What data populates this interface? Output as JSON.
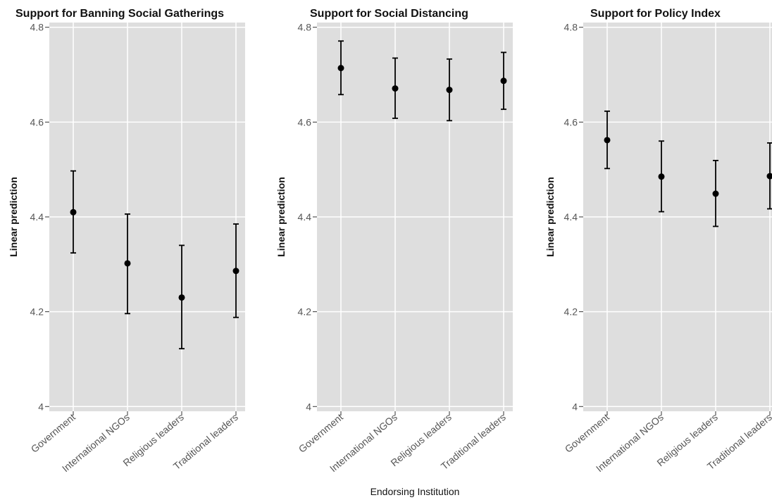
{
  "figure": {
    "xlabel": "Endorsing Institution",
    "colors": {
      "panel_bg": "#dedede",
      "grid": "#ffffff",
      "marker": "#000000",
      "text": "#111111",
      "tick_text": "#555555"
    }
  },
  "chart_data": [
    {
      "type": "scatter",
      "title": "Support for Banning Social Gatherings",
      "ylabel": "Linear prediction",
      "categories": [
        "Government",
        "International NGOs",
        "Religious leaders",
        "Traditional leaders"
      ],
      "values": [
        4.41,
        4.302,
        4.23,
        4.286
      ],
      "ci_low": [
        4.324,
        4.196,
        4.122,
        4.188
      ],
      "ci_high": [
        4.497,
        4.406,
        4.34,
        4.385
      ],
      "yticks": [
        4,
        4.2,
        4.4,
        4.6,
        4.8
      ],
      "ytick_labels": [
        "4",
        "4.2",
        "4.4",
        "4.6",
        "4.8"
      ],
      "ylim": [
        3.99,
        4.81
      ],
      "grid": true
    },
    {
      "type": "scatter",
      "title": "Support for Social Distancing",
      "ylabel": "Linear prediction",
      "categories": [
        "Government",
        "International NGOs",
        "Religious leaders",
        "Traditional leaders"
      ],
      "values": [
        4.714,
        4.671,
        4.668,
        4.687
      ],
      "ci_low": [
        4.658,
        4.608,
        4.603,
        4.627
      ],
      "ci_high": [
        4.771,
        4.735,
        4.733,
        4.747
      ],
      "yticks": [
        4,
        4.2,
        4.4,
        4.6,
        4.8
      ],
      "ytick_labels": [
        "4",
        "4.2",
        "4.4",
        "4.6",
        "4.8"
      ],
      "ylim": [
        3.99,
        4.81
      ],
      "grid": true
    },
    {
      "type": "scatter",
      "title": "Support for Policy Index",
      "ylabel": "Linear prediction",
      "categories": [
        "Government",
        "International NGOs",
        "Religious leaders",
        "Traditional leaders"
      ],
      "values": [
        4.562,
        4.485,
        4.449,
        4.486
      ],
      "ci_low": [
        4.502,
        4.411,
        4.38,
        4.417
      ],
      "ci_high": [
        4.623,
        4.56,
        4.519,
        4.556
      ],
      "yticks": [
        4,
        4.2,
        4.4,
        4.6,
        4.8
      ],
      "ytick_labels": [
        "4",
        "4.2",
        "4.4",
        "4.6",
        "4.8"
      ],
      "ylim": [
        3.99,
        4.81
      ],
      "grid": true
    }
  ]
}
